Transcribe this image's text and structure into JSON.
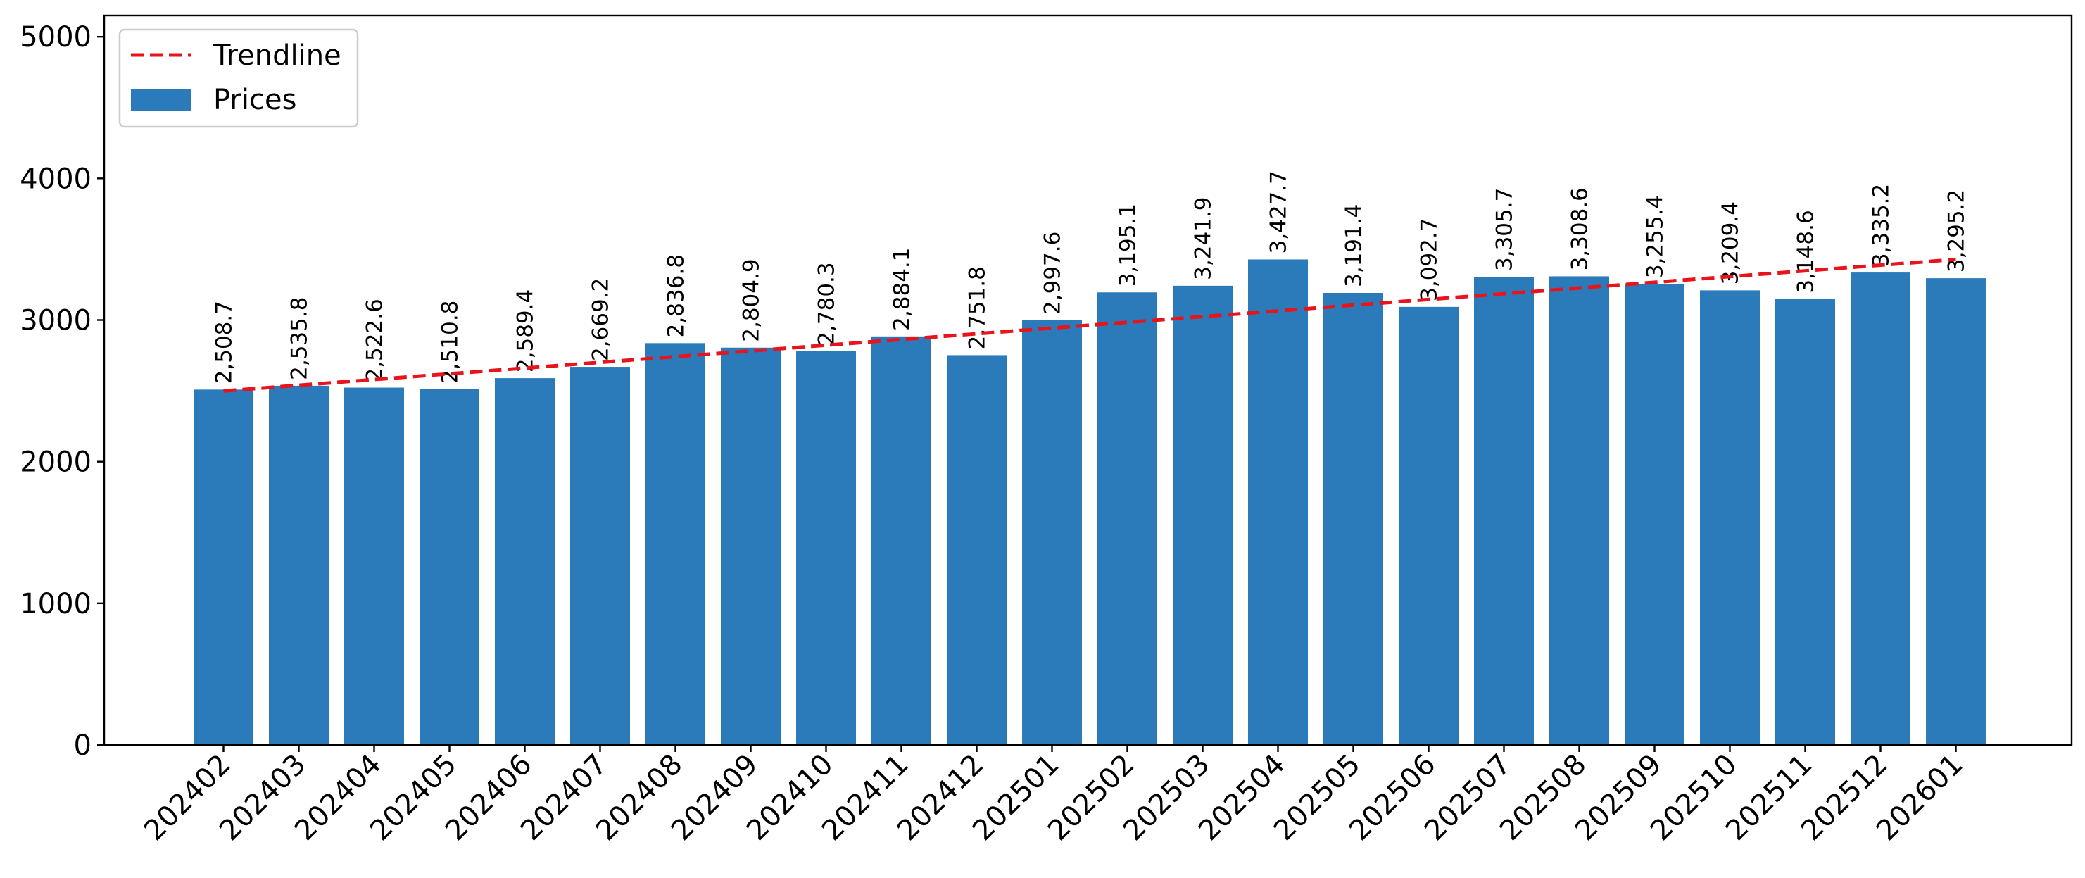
{
  "chart_data": {
    "type": "bar",
    "title": "",
    "xlabel": "",
    "ylabel": "",
    "ylim": [
      0,
      5150
    ],
    "yticks": [
      0,
      1000,
      2000,
      3000,
      4000,
      5000
    ],
    "categories": [
      "202402",
      "202403",
      "202404",
      "202405",
      "202406",
      "202407",
      "202408",
      "202409",
      "202410",
      "202411",
      "202412",
      "202501",
      "202502",
      "202503",
      "202504",
      "202505",
      "202506",
      "202507",
      "202508",
      "202509",
      "202510",
      "202511",
      "202512",
      "202601"
    ],
    "series": [
      {
        "name": "Prices",
        "values": [
          2508.7,
          2535.8,
          2522.6,
          2510.8,
          2589.4,
          2669.2,
          2836.8,
          2804.9,
          2780.3,
          2884.1,
          2751.8,
          2997.6,
          3195.1,
          3241.9,
          3427.7,
          3191.4,
          3092.7,
          3305.7,
          3308.6,
          3255.4,
          3209.4,
          3148.6,
          3335.2,
          3295.2
        ],
        "data_labels": [
          "2,508.7",
          "2,535.8",
          "2,522.6",
          "2,510.8",
          "2,589.4",
          "2,669.2",
          "2,836.8",
          "2,804.9",
          "2,780.3",
          "2,884.1",
          "2,751.8",
          "2,997.6",
          "3,195.1",
          "3,241.9",
          "3,427.7",
          "3,191.4",
          "3,092.7",
          "3,305.7",
          "3,308.6",
          "3,255.4",
          "3,209.4",
          "3,148.6",
          "3,335.2",
          "3,295.2"
        ],
        "color": "#2b7bba"
      }
    ],
    "trendline": {
      "name": "Trendline",
      "start": 2499,
      "end": 3428,
      "color": "#e8141c",
      "style": "dashed"
    },
    "legend": {
      "position": "top-left",
      "entries": [
        "Trendline",
        "Prices"
      ]
    },
    "grid": false,
    "xtick_rotation": 45,
    "data_label_rotation": 90
  }
}
